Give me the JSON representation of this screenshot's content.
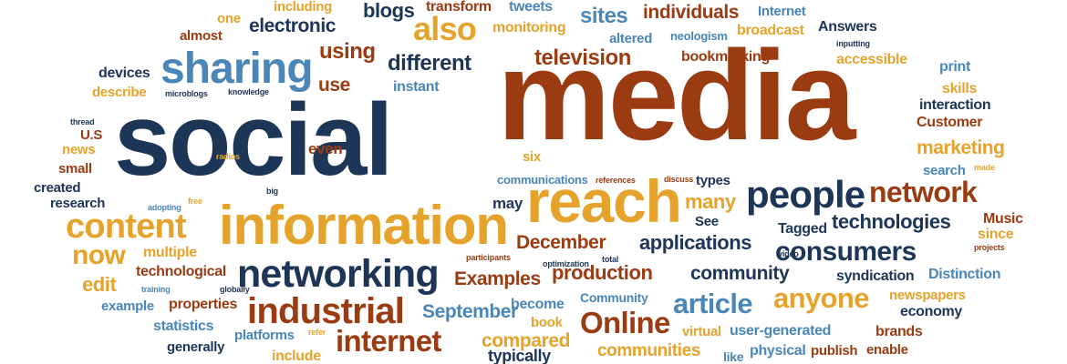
{
  "palette": {
    "navy": "#1d3557",
    "rust": "#9a3b12",
    "gold": "#e5a32c",
    "steel": "#4a86b8"
  },
  "words": [
    {
      "text": "social",
      "color": "navy"
    },
    {
      "text": "media",
      "color": "rust"
    },
    {
      "text": "information",
      "color": "gold"
    },
    {
      "text": "reach",
      "color": "gold"
    },
    {
      "text": "sharing",
      "color": "steel"
    },
    {
      "text": "networking",
      "color": "navy"
    },
    {
      "text": "people",
      "color": "navy"
    },
    {
      "text": "industrial",
      "color": "rust"
    },
    {
      "text": "content",
      "color": "gold"
    },
    {
      "text": "network",
      "color": "rust"
    },
    {
      "text": "anyone",
      "color": "gold"
    },
    {
      "text": "article",
      "color": "steel"
    },
    {
      "text": "Online",
      "color": "rust"
    },
    {
      "text": "consumers",
      "color": "navy"
    },
    {
      "text": "internet",
      "color": "rust"
    },
    {
      "text": "also",
      "color": "gold"
    },
    {
      "text": "now",
      "color": "gold"
    },
    {
      "text": "technologies",
      "color": "navy"
    },
    {
      "text": "applications",
      "color": "navy"
    },
    {
      "text": "different",
      "color": "navy"
    },
    {
      "text": "television",
      "color": "rust"
    },
    {
      "text": "individuals",
      "color": "rust"
    },
    {
      "text": "using",
      "color": "rust"
    },
    {
      "text": "blogs",
      "color": "navy"
    },
    {
      "text": "electronic",
      "color": "navy"
    },
    {
      "text": "production",
      "color": "rust"
    },
    {
      "text": "December",
      "color": "rust"
    },
    {
      "text": "community",
      "color": "navy"
    },
    {
      "text": "Examples",
      "color": "rust"
    },
    {
      "text": "marketing",
      "color": "gold"
    },
    {
      "text": "many",
      "color": "gold"
    },
    {
      "text": "sites",
      "color": "steel"
    },
    {
      "text": "compared",
      "color": "gold"
    },
    {
      "text": "September",
      "color": "steel"
    },
    {
      "text": "communities",
      "color": "gold"
    },
    {
      "text": "user-generated",
      "color": "steel"
    },
    {
      "text": "accessible",
      "color": "gold"
    },
    {
      "text": "bookmarking",
      "color": "rust"
    },
    {
      "text": "monitoring",
      "color": "gold"
    },
    {
      "text": "broadcast",
      "color": "gold"
    },
    {
      "text": "transform",
      "color": "rust"
    },
    {
      "text": "tweets",
      "color": "steel"
    },
    {
      "text": "including",
      "color": "gold"
    },
    {
      "text": "one",
      "color": "gold"
    },
    {
      "text": "almost",
      "color": "rust"
    },
    {
      "text": "Internet",
      "color": "steel"
    },
    {
      "text": "Answers",
      "color": "navy"
    },
    {
      "text": "altered",
      "color": "steel"
    },
    {
      "text": "neologism",
      "color": "steel"
    },
    {
      "text": "inputting",
      "color": "navy"
    },
    {
      "text": "print",
      "color": "steel"
    },
    {
      "text": "skills",
      "color": "gold"
    },
    {
      "text": "interaction",
      "color": "navy"
    },
    {
      "text": "Customer",
      "color": "rust"
    },
    {
      "text": "devices",
      "color": "navy"
    },
    {
      "text": "describe",
      "color": "gold"
    },
    {
      "text": "microblogs",
      "color": "navy"
    },
    {
      "text": "knowledge",
      "color": "navy"
    },
    {
      "text": "use",
      "color": "rust"
    },
    {
      "text": "instant",
      "color": "steel"
    },
    {
      "text": "thread",
      "color": "navy"
    },
    {
      "text": "U.S",
      "color": "rust"
    },
    {
      "text": "news",
      "color": "gold"
    },
    {
      "text": "small",
      "color": "rust"
    },
    {
      "text": "created",
      "color": "navy"
    },
    {
      "text": "research",
      "color": "navy"
    },
    {
      "text": "radios",
      "color": "gold"
    },
    {
      "text": "even",
      "color": "rust"
    },
    {
      "text": "six",
      "color": "gold"
    },
    {
      "text": "communications",
      "color": "steel"
    },
    {
      "text": "references",
      "color": "rust"
    },
    {
      "text": "discuss",
      "color": "rust"
    },
    {
      "text": "types",
      "color": "navy"
    },
    {
      "text": "search",
      "color": "steel"
    },
    {
      "text": "made",
      "color": "gold"
    },
    {
      "text": "big",
      "color": "navy"
    },
    {
      "text": "free",
      "color": "gold"
    },
    {
      "text": "adopting",
      "color": "steel"
    },
    {
      "text": "may",
      "color": "navy"
    },
    {
      "text": "See",
      "color": "navy"
    },
    {
      "text": "Tagged",
      "color": "navy"
    },
    {
      "text": "Music",
      "color": "rust"
    },
    {
      "text": "since",
      "color": "gold"
    },
    {
      "text": "projects",
      "color": "rust"
    },
    {
      "text": "video",
      "color": "navy"
    },
    {
      "text": "multiple",
      "color": "gold"
    },
    {
      "text": "participants",
      "color": "rust"
    },
    {
      "text": "total",
      "color": "navy"
    },
    {
      "text": "optimization",
      "color": "navy"
    },
    {
      "text": "technological",
      "color": "rust"
    },
    {
      "text": "edit",
      "color": "gold"
    },
    {
      "text": "training",
      "color": "steel"
    },
    {
      "text": "globally",
      "color": "navy"
    },
    {
      "text": "syndication",
      "color": "navy"
    },
    {
      "text": "Distinction",
      "color": "steel"
    },
    {
      "text": "example",
      "color": "steel"
    },
    {
      "text": "properties",
      "color": "rust"
    },
    {
      "text": "become",
      "color": "steel"
    },
    {
      "text": "Community",
      "color": "steel"
    },
    {
      "text": "newspapers",
      "color": "gold"
    },
    {
      "text": "economy",
      "color": "navy"
    },
    {
      "text": "statistics",
      "color": "steel"
    },
    {
      "text": "refer",
      "color": "gold"
    },
    {
      "text": "book",
      "color": "gold"
    },
    {
      "text": "virtual",
      "color": "gold"
    },
    {
      "text": "brands",
      "color": "rust"
    },
    {
      "text": "generally",
      "color": "navy"
    },
    {
      "text": "platforms",
      "color": "steel"
    },
    {
      "text": "physical",
      "color": "steel"
    },
    {
      "text": "publish",
      "color": "rust"
    },
    {
      "text": "enable",
      "color": "rust"
    },
    {
      "text": "include",
      "color": "gold"
    },
    {
      "text": "typically",
      "color": "navy"
    },
    {
      "text": "like",
      "color": "steel"
    }
  ]
}
